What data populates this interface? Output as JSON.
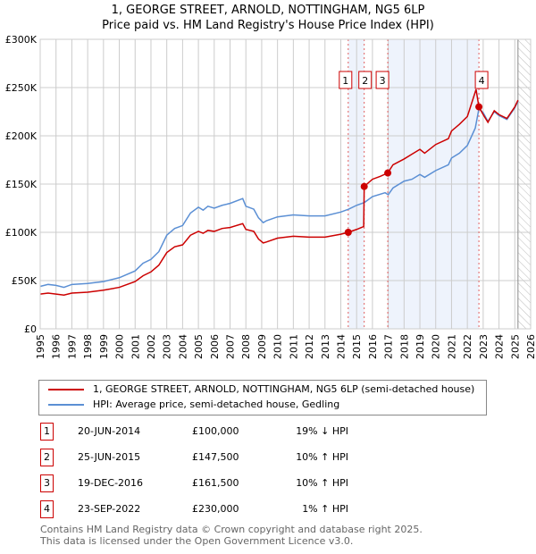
{
  "title": "1, GEORGE STREET, ARNOLD, NOTTINGHAM, NG5 6LP",
  "subtitle": "Price paid vs. HM Land Registry's House Price Index (HPI)",
  "chart_data": {
    "type": "line",
    "ylim": [
      0,
      300000
    ],
    "xlim": [
      1995,
      2026
    ],
    "yticks": [
      {
        "v": 0,
        "label": "£0"
      },
      {
        "v": 50000,
        "label": "£50K"
      },
      {
        "v": 100000,
        "label": "£100K"
      },
      {
        "v": 150000,
        "label": "£150K"
      },
      {
        "v": 200000,
        "label": "£200K"
      },
      {
        "v": 250000,
        "label": "£250K"
      },
      {
        "v": 300000,
        "label": "£300K"
      }
    ],
    "xticks": [
      "1995",
      "1996",
      "1997",
      "1998",
      "1999",
      "2000",
      "2001",
      "2002",
      "2003",
      "2004",
      "2005",
      "2006",
      "2007",
      "2008",
      "2009",
      "2010",
      "2011",
      "2012",
      "2013",
      "2014",
      "2015",
      "2016",
      "2017",
      "2018",
      "2019",
      "2020",
      "2021",
      "2022",
      "2023",
      "2024",
      "2025",
      "2026"
    ],
    "colors": {
      "price": "#cc0000",
      "hpi": "#5b8fd4",
      "band": "#eef3fc"
    },
    "series": [
      {
        "name": "price",
        "points": [
          [
            1995,
            36
          ],
          [
            1995.5,
            37
          ],
          [
            1996,
            36
          ],
          [
            1996.5,
            35
          ],
          [
            1997,
            37
          ],
          [
            1998,
            38
          ],
          [
            1999,
            40
          ],
          [
            2000,
            43
          ],
          [
            2001,
            49
          ],
          [
            2001.5,
            55
          ],
          [
            2002,
            59
          ],
          [
            2002.5,
            66
          ],
          [
            2003,
            79
          ],
          [
            2003.5,
            85
          ],
          [
            2004,
            87
          ],
          [
            2004.5,
            97
          ],
          [
            2005,
            101
          ],
          [
            2005.3,
            99
          ],
          [
            2005.6,
            102
          ],
          [
            2006,
            101
          ],
          [
            2006.5,
            104
          ],
          [
            2007,
            105
          ],
          [
            2007.8,
            109
          ],
          [
            2008,
            103
          ],
          [
            2008.5,
            101
          ],
          [
            2008.8,
            93
          ],
          [
            2009.1,
            89
          ],
          [
            2009.3,
            90
          ],
          [
            2010,
            94
          ],
          [
            2011,
            96
          ],
          [
            2012,
            95
          ],
          [
            2013,
            95
          ],
          [
            2014,
            98
          ],
          [
            2014.47,
            100
          ],
          [
            2015,
            103
          ],
          [
            2015.45,
            106
          ],
          [
            2015.48,
            147.5
          ],
          [
            2016,
            155
          ],
          [
            2016.5,
            158
          ],
          [
            2016.97,
            161.5
          ],
          [
            2017.3,
            170
          ],
          [
            2018,
            176
          ],
          [
            2018.5,
            181
          ],
          [
            2019,
            186
          ],
          [
            2019.3,
            182
          ],
          [
            2020,
            191
          ],
          [
            2020.8,
            197
          ],
          [
            2021,
            205
          ],
          [
            2021.5,
            212
          ],
          [
            2022,
            220
          ],
          [
            2022.55,
            248
          ],
          [
            2022.73,
            230
          ],
          [
            2023,
            222
          ],
          [
            2023.3,
            214
          ],
          [
            2023.7,
            226
          ],
          [
            2024,
            222
          ],
          [
            2024.5,
            218
          ],
          [
            2025,
            230
          ],
          [
            2025.2,
            237
          ]
        ]
      },
      {
        "name": "hpi",
        "points": [
          [
            1995,
            44
          ],
          [
            1995.5,
            46
          ],
          [
            1996,
            45
          ],
          [
            1996.5,
            43
          ],
          [
            1997,
            46
          ],
          [
            1998,
            47
          ],
          [
            1999,
            49
          ],
          [
            2000,
            53
          ],
          [
            2001,
            60
          ],
          [
            2001.5,
            68
          ],
          [
            2002,
            72
          ],
          [
            2002.5,
            80
          ],
          [
            2003,
            97
          ],
          [
            2003.5,
            104
          ],
          [
            2004,
            107
          ],
          [
            2004.5,
            120
          ],
          [
            2005,
            126
          ],
          [
            2005.3,
            123
          ],
          [
            2005.6,
            127
          ],
          [
            2006,
            125
          ],
          [
            2006.5,
            128
          ],
          [
            2007,
            130
          ],
          [
            2007.8,
            135
          ],
          [
            2008,
            127
          ],
          [
            2008.5,
            124
          ],
          [
            2008.8,
            115
          ],
          [
            2009.1,
            110
          ],
          [
            2009.3,
            112
          ],
          [
            2010,
            116
          ],
          [
            2011,
            118
          ],
          [
            2012,
            117
          ],
          [
            2013,
            117
          ],
          [
            2014,
            121
          ],
          [
            2014.5,
            124
          ],
          [
            2015,
            128
          ],
          [
            2015.5,
            131
          ],
          [
            2016,
            137
          ],
          [
            2016.8,
            141
          ],
          [
            2017,
            139
          ],
          [
            2017.3,
            146
          ],
          [
            2018,
            153
          ],
          [
            2018.5,
            155
          ],
          [
            2019,
            160
          ],
          [
            2019.3,
            157
          ],
          [
            2020,
            164
          ],
          [
            2020.8,
            170
          ],
          [
            2021,
            177
          ],
          [
            2021.5,
            182
          ],
          [
            2022,
            190
          ],
          [
            2022.5,
            208
          ],
          [
            2022.73,
            228
          ],
          [
            2023,
            224
          ],
          [
            2023.3,
            215
          ],
          [
            2023.7,
            225
          ],
          [
            2024,
            221
          ],
          [
            2024.5,
            217
          ],
          [
            2025,
            229
          ],
          [
            2025.2,
            236
          ]
        ]
      }
    ],
    "sales": [
      {
        "n": "1",
        "x": 2014.47,
        "y": 100
      },
      {
        "n": "2",
        "x": 2015.48,
        "y": 147.5
      },
      {
        "n": "3",
        "x": 2016.97,
        "y": 161.5
      },
      {
        "n": "4",
        "x": 2022.73,
        "y": 230
      }
    ],
    "forecast_start": 2025.2
  },
  "legend": {
    "price": "1, GEORGE STREET, ARNOLD, NOTTINGHAM, NG5 6LP (semi-detached house)",
    "hpi": "HPI: Average price, semi-detached house, Gedling"
  },
  "transactions": [
    {
      "n": "1",
      "date": "20-JUN-2014",
      "price": "£100,000",
      "hpi": "19% ↓ HPI"
    },
    {
      "n": "2",
      "date": "25-JUN-2015",
      "price": "£147,500",
      "hpi": "10% ↑ HPI"
    },
    {
      "n": "3",
      "date": "19-DEC-2016",
      "price": "£161,500",
      "hpi": "10% ↑ HPI"
    },
    {
      "n": "4",
      "date": "23-SEP-2022",
      "price": "£230,000",
      "hpi": "1% ↑ HPI"
    }
  ],
  "footer": [
    "Contains HM Land Registry data © Crown copyright and database right 2025.",
    "This data is licensed under the Open Government Licence v3.0."
  ]
}
